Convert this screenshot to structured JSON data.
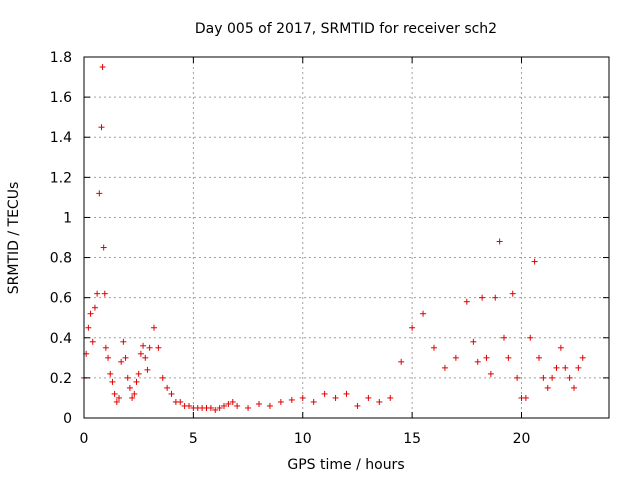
{
  "chart_data": {
    "type": "scatter",
    "title": "Day 005 of 2017, SRMTID for receiver sch2",
    "xlabel": "GPS time / hours",
    "ylabel": "SRMTID / TECUs",
    "xlim": [
      0,
      24
    ],
    "ylim": [
      0,
      1.8
    ],
    "xticks": [
      0,
      5,
      10,
      15,
      20
    ],
    "xtick_labels": [
      "0",
      "5",
      "10",
      "15",
      "20"
    ],
    "yticks": [
      0,
      0.2,
      0.4,
      0.6,
      0.8,
      1.0,
      1.2,
      1.4,
      1.6,
      1.8
    ],
    "ytick_labels": [
      "0",
      "0.2",
      "0.4",
      "0.6",
      "0.8",
      "1",
      "1.2",
      "1.4",
      "1.6",
      "1.8"
    ],
    "grid": true,
    "marker": "+",
    "marker_color": "#e00000",
    "series": [
      {
        "name": "sch2",
        "x": [
          0.0,
          0.1,
          0.2,
          0.3,
          0.4,
          0.5,
          0.6,
          0.7,
          0.8,
          0.85,
          0.9,
          0.95,
          1.0,
          1.1,
          1.2,
          1.3,
          1.4,
          1.5,
          1.6,
          1.7,
          1.8,
          1.9,
          2.0,
          2.1,
          2.2,
          2.3,
          2.4,
          2.5,
          2.6,
          2.7,
          2.8,
          2.9,
          3.0,
          3.2,
          3.4,
          3.6,
          3.8,
          4.0,
          4.2,
          4.4,
          4.6,
          4.8,
          5.0,
          5.2,
          5.4,
          5.6,
          5.8,
          6.0,
          6.2,
          6.4,
          6.6,
          6.8,
          7.0,
          7.5,
          8.0,
          8.5,
          9.0,
          9.5,
          10.0,
          10.5,
          11.0,
          11.5,
          12.0,
          12.5,
          13.0,
          13.5,
          14.0,
          14.5,
          15.0,
          15.5,
          16.0,
          16.5,
          17.0,
          17.5,
          17.8,
          18.0,
          18.2,
          18.4,
          18.6,
          18.8,
          19.0,
          19.2,
          19.4,
          19.6,
          19.8,
          20.0,
          20.2,
          20.4,
          20.6,
          20.8,
          21.0,
          21.2,
          21.4,
          21.6,
          21.8,
          22.0,
          22.2,
          22.4,
          22.6,
          22.8
        ],
        "y": [
          0.2,
          0.32,
          0.45,
          0.52,
          0.38,
          0.55,
          0.62,
          1.12,
          1.45,
          1.75,
          0.85,
          0.62,
          0.35,
          0.3,
          0.22,
          0.18,
          0.12,
          0.08,
          0.1,
          0.28,
          0.38,
          0.3,
          0.2,
          0.15,
          0.1,
          0.12,
          0.18,
          0.22,
          0.32,
          0.36,
          0.3,
          0.24,
          0.35,
          0.45,
          0.35,
          0.2,
          0.15,
          0.12,
          0.08,
          0.08,
          0.06,
          0.06,
          0.05,
          0.05,
          0.05,
          0.05,
          0.05,
          0.04,
          0.05,
          0.06,
          0.07,
          0.08,
          0.06,
          0.05,
          0.07,
          0.06,
          0.08,
          0.09,
          0.1,
          0.08,
          0.12,
          0.1,
          0.12,
          0.06,
          0.1,
          0.08,
          0.1,
          0.28,
          0.45,
          0.52,
          0.35,
          0.25,
          0.3,
          0.58,
          0.38,
          0.28,
          0.6,
          0.3,
          0.22,
          0.6,
          0.88,
          0.4,
          0.3,
          0.62,
          0.2,
          0.1,
          0.1,
          0.4,
          0.78,
          0.3,
          0.2,
          0.15,
          0.2,
          0.25,
          0.35,
          0.25,
          0.2,
          0.15,
          0.25,
          0.3
        ]
      }
    ]
  }
}
